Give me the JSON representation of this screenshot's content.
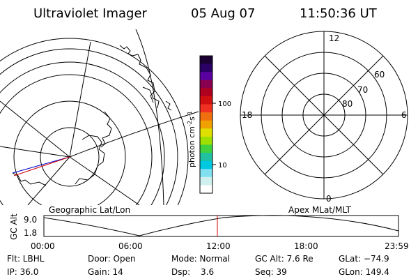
{
  "header": {
    "instrument": "Ultraviolet Imager",
    "date": "05 Aug 07",
    "time": "11:50:36 UT"
  },
  "colorbar": {
    "label_main": "photon cm",
    "label_exp1": "-2",
    "label_mid": "s",
    "label_exp2": "-1",
    "tick_100": "100",
    "tick_10": "10",
    "colors": [
      "#1a0033",
      "#2a0066",
      "#5a00a0",
      "#8a0050",
      "#b00020",
      "#d01010",
      "#f03020",
      "#f07010",
      "#f0a000",
      "#e0e000",
      "#a0e000",
      "#40d040",
      "#20c0a0",
      "#00c8e0",
      "#80e0f0",
      "#d0f0f0",
      "#ffffff"
    ]
  },
  "left_panel": {
    "caption": "Geographic Lat/Lon"
  },
  "right_panel": {
    "caption": "Apex MLat/MLT",
    "mlt_12": "12",
    "mlt_6": "6",
    "mlt_18": "18",
    "mlt_0": "0",
    "lat_60": "60",
    "lat_70": "70",
    "lat_80": "80"
  },
  "altitude_plot": {
    "ylabel": "GC Alt",
    "tick_top": "9.0",
    "tick_bottom": "1.8",
    "x_ticks": [
      "00:00",
      "06:00",
      "12:00",
      "18:00",
      "23:59"
    ],
    "marker_color": "#d00000"
  },
  "info": {
    "flt": "Flt: LBHL",
    "ip": "IP: 36.0",
    "door": "Door: Open",
    "gain": "Gain: 14",
    "mode": "Mode: Normal",
    "dsp_label": "Dsp:",
    "dsp_value": "3.6",
    "gcalt": "GC Alt: 7.6 Re",
    "seq": "Seq: 39",
    "glat": "GLat: −74.9",
    "glon": "GLon: 149.4"
  }
}
